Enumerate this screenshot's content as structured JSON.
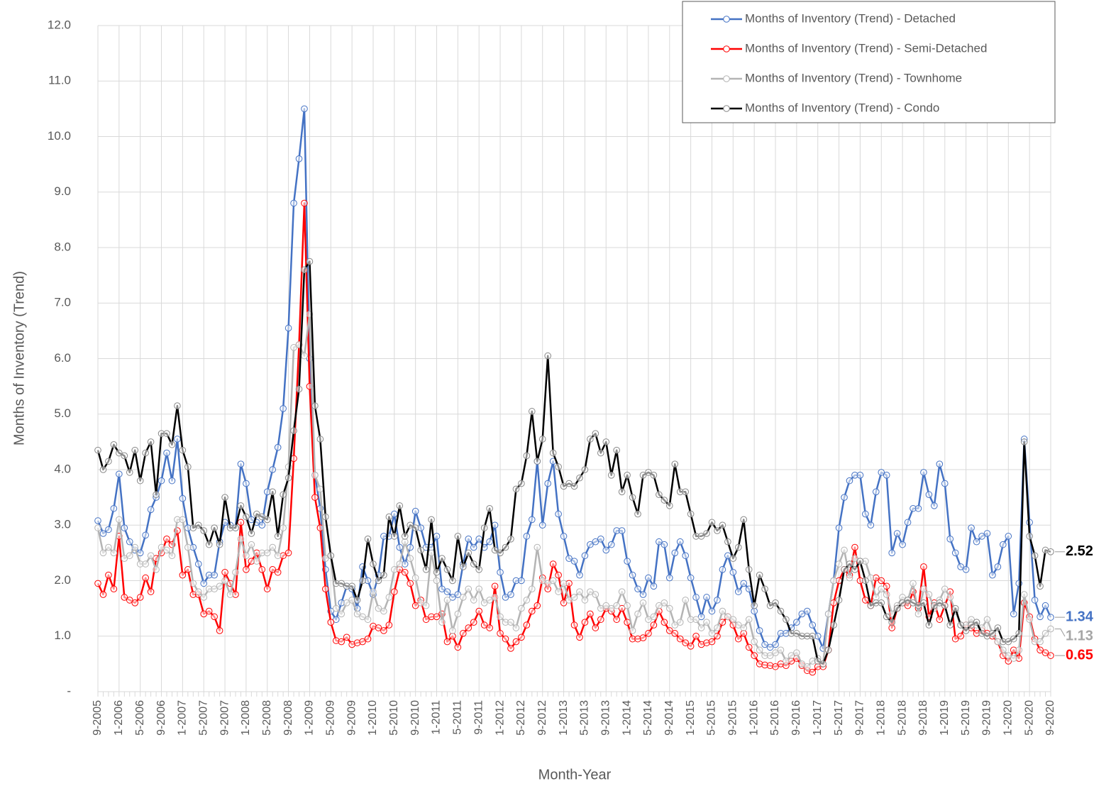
{
  "chart_data": {
    "type": "line",
    "x_label": "Month-Year",
    "y_label": "Months of Inventory (Trend)",
    "categories": [
      "9-2005",
      null,
      null,
      null,
      "1-2006",
      null,
      null,
      null,
      "5-2006",
      null,
      null,
      null,
      "9-2006",
      null,
      null,
      null,
      "1-2007",
      null,
      null,
      null,
      "5-2007",
      null,
      null,
      null,
      "9-2007",
      null,
      null,
      null,
      "1-2008",
      null,
      null,
      null,
      "5-2008",
      null,
      null,
      null,
      "9-2008",
      null,
      null,
      null,
      "1-2009",
      null,
      null,
      null,
      "5-2009",
      null,
      null,
      null,
      "9-2009",
      null,
      null,
      null,
      "1-2010",
      null,
      null,
      null,
      "5-2010",
      null,
      null,
      null,
      "9-2010",
      null,
      null,
      null,
      "1-2011",
      null,
      null,
      null,
      "5-2011",
      null,
      null,
      null,
      "9-2011",
      null,
      null,
      null,
      "1-2012",
      null,
      null,
      null,
      "5-2012",
      null,
      null,
      null,
      "9-2012",
      null,
      null,
      null,
      "1-2013",
      null,
      null,
      null,
      "5-2013",
      null,
      null,
      null,
      "9-2013",
      null,
      null,
      null,
      "1-2014",
      null,
      null,
      null,
      "5-2014",
      null,
      null,
      null,
      "9-2014",
      null,
      null,
      null,
      "1-2015",
      null,
      null,
      null,
      "5-2015",
      null,
      null,
      null,
      "9-2015",
      null,
      null,
      null,
      "1-2016",
      null,
      null,
      null,
      "5-2016",
      null,
      null,
      null,
      "9-2016",
      null,
      null,
      null,
      "1-2017",
      null,
      null,
      null,
      "5-2017",
      null,
      null,
      null,
      "9-2017",
      null,
      null,
      null,
      "1-2018",
      null,
      null,
      null,
      "5-2018",
      null,
      null,
      null,
      "9-2018",
      null,
      null,
      null,
      "1-2019",
      null,
      null,
      null,
      "5-2019",
      null,
      null,
      null,
      "9-2019",
      null,
      null,
      null,
      "1-2020",
      null,
      null,
      null,
      "5-2020",
      null,
      null,
      null,
      "9-2020"
    ],
    "series": [
      {
        "name": "Months of Inventory (Trend) - Detached",
        "color": "#4472c4",
        "values": [
          3.08,
          2.85,
          2.92,
          3.3,
          3.92,
          2.95,
          2.7,
          2.55,
          2.5,
          2.82,
          3.28,
          3.5,
          3.8,
          4.3,
          3.8,
          4.55,
          3.48,
          2.95,
          2.6,
          2.3,
          1.95,
          2.1,
          2.1,
          2.7,
          3.05,
          3.0,
          2.95,
          4.1,
          3.75,
          3.1,
          3.05,
          3.0,
          3.6,
          4.0,
          4.4,
          5.1,
          6.55,
          8.8,
          9.6,
          10.5,
          6.0,
          3.9,
          3.3,
          2.2,
          1.45,
          1.3,
          1.6,
          1.9,
          1.85,
          1.5,
          2.25,
          2.0,
          1.75,
          2.1,
          2.8,
          2.8,
          3.2,
          2.6,
          2.3,
          2.6,
          3.25,
          2.95,
          2.6,
          2.6,
          2.8,
          1.85,
          1.8,
          1.7,
          1.75,
          2.3,
          2.75,
          2.6,
          2.75,
          2.6,
          2.7,
          3.0,
          2.15,
          1.7,
          1.75,
          2.0,
          2.0,
          2.8,
          3.1,
          4.15,
          3.0,
          3.75,
          4.15,
          3.2,
          2.8,
          2.4,
          2.35,
          2.1,
          2.45,
          2.65,
          2.7,
          2.75,
          2.55,
          2.65,
          2.9,
          2.9,
          2.35,
          2.1,
          1.85,
          1.75,
          2.05,
          1.9,
          2.7,
          2.65,
          2.05,
          2.5,
          2.7,
          2.45,
          2.05,
          1.7,
          1.35,
          1.7,
          1.45,
          1.65,
          2.2,
          2.45,
          2.15,
          1.8,
          1.95,
          1.85,
          1.45,
          1.1,
          0.85,
          0.8,
          0.85,
          1.05,
          1.05,
          1.15,
          1.25,
          1.4,
          1.45,
          1.2,
          1.0,
          0.78,
          1.4,
          2.0,
          2.95,
          3.5,
          3.8,
          3.9,
          3.9,
          3.2,
          3.0,
          3.6,
          3.95,
          3.9,
          2.5,
          2.85,
          2.65,
          3.05,
          3.3,
          3.3,
          3.95,
          3.55,
          3.35,
          4.1,
          3.75,
          2.75,
          2.5,
          2.25,
          2.2,
          2.95,
          2.7,
          2.8,
          2.85,
          2.1,
          2.25,
          2.65,
          2.8,
          1.4,
          1.95,
          4.55,
          3.05,
          1.65,
          1.35,
          1.55,
          1.34
        ]
      },
      {
        "name": "Months of Inventory (Trend) - Semi-Detached",
        "color": "#ff0000",
        "values": [
          1.95,
          1.75,
          2.1,
          1.85,
          2.8,
          1.7,
          1.65,
          1.6,
          1.7,
          2.05,
          1.8,
          2.4,
          2.5,
          2.75,
          2.65,
          2.9,
          2.1,
          2.2,
          1.75,
          1.75,
          1.4,
          1.45,
          1.35,
          1.1,
          2.15,
          1.95,
          1.75,
          3.05,
          2.2,
          2.35,
          2.5,
          2.2,
          1.85,
          2.2,
          2.15,
          2.45,
          2.5,
          4.2,
          6.25,
          8.8,
          5.5,
          3.5,
          2.95,
          1.85,
          1.25,
          0.92,
          0.9,
          0.98,
          0.85,
          0.88,
          0.9,
          0.95,
          1.18,
          1.15,
          1.1,
          1.2,
          1.8,
          2.2,
          2.15,
          1.95,
          1.55,
          1.65,
          1.3,
          1.35,
          1.35,
          1.4,
          0.9,
          1.0,
          0.8,
          1.05,
          1.15,
          1.25,
          1.45,
          1.2,
          1.15,
          1.9,
          1.05,
          0.95,
          0.78,
          0.9,
          0.98,
          1.2,
          1.45,
          1.55,
          2.05,
          1.85,
          2.3,
          2.1,
          1.6,
          1.95,
          1.2,
          0.98,
          1.25,
          1.4,
          1.15,
          1.3,
          1.5,
          1.45,
          1.3,
          1.5,
          1.25,
          0.95,
          0.95,
          0.97,
          1.05,
          1.2,
          1.45,
          1.25,
          1.1,
          1.05,
          0.95,
          0.88,
          0.82,
          1.0,
          0.85,
          0.88,
          0.9,
          1.0,
          1.25,
          1.35,
          1.2,
          0.95,
          1.05,
          0.8,
          0.65,
          0.5,
          0.48,
          0.47,
          0.45,
          0.5,
          0.47,
          0.55,
          0.6,
          0.47,
          0.38,
          0.35,
          0.45,
          0.45,
          0.75,
          1.6,
          2.0,
          2.2,
          2.1,
          2.6,
          2.0,
          1.65,
          1.55,
          2.05,
          2.0,
          1.9,
          1.15,
          1.5,
          1.6,
          1.55,
          1.8,
          1.5,
          2.25,
          1.35,
          1.6,
          1.3,
          1.55,
          1.8,
          0.95,
          1.0,
          1.2,
          1.15,
          1.05,
          1.1,
          1.05,
          1.0,
          0.9,
          0.65,
          0.55,
          0.75,
          0.6,
          1.6,
          1.35,
          0.95,
          0.75,
          0.7,
          0.65
        ]
      },
      {
        "name": "Months of Inventory (Trend) - Townhome",
        "color": "#b4b4b4",
        "label_color": "#a6a6a6",
        "values": [
          2.95,
          2.5,
          2.6,
          2.5,
          3.1,
          2.4,
          2.45,
          2.6,
          2.3,
          2.3,
          2.45,
          2.2,
          2.6,
          2.55,
          2.45,
          3.1,
          3.1,
          2.6,
          1.95,
          1.8,
          1.7,
          1.85,
          1.85,
          1.9,
          2.0,
          1.75,
          2.15,
          2.75,
          2.45,
          2.65,
          2.35,
          2.5,
          2.5,
          2.6,
          2.45,
          2.95,
          4.05,
          6.2,
          6.25,
          6.05,
          6.8,
          3.9,
          3.65,
          2.4,
          2.45,
          1.5,
          1.4,
          1.6,
          1.65,
          1.4,
          1.35,
          1.3,
          1.8,
          1.5,
          1.45,
          1.7,
          2.2,
          2.3,
          2.7,
          2.4,
          2.05,
          1.6,
          1.55,
          2.5,
          2.0,
          1.25,
          1.65,
          1.1,
          1.4,
          1.7,
          1.85,
          1.65,
          1.85,
          1.6,
          1.65,
          1.7,
          1.35,
          1.25,
          1.25,
          1.15,
          1.5,
          1.65,
          1.85,
          2.6,
          2.0,
          1.95,
          2.0,
          1.8,
          1.95,
          1.65,
          1.7,
          1.8,
          1.65,
          1.8,
          1.75,
          1.5,
          1.55,
          1.5,
          1.55,
          1.8,
          1.55,
          1.1,
          1.4,
          1.6,
          1.3,
          1.35,
          1.55,
          1.6,
          1.5,
          1.2,
          1.25,
          1.65,
          1.3,
          1.3,
          1.15,
          1.25,
          1.05,
          1.15,
          1.45,
          1.35,
          1.3,
          1.2,
          1.15,
          1.3,
          0.9,
          0.75,
          0.65,
          0.65,
          0.7,
          0.75,
          0.55,
          0.65,
          0.7,
          0.5,
          0.45,
          0.55,
          0.6,
          0.5,
          1.4,
          2.0,
          2.3,
          2.55,
          2.05,
          2.4,
          2.35,
          2.35,
          2.05,
          1.7,
          1.85,
          1.75,
          1.4,
          1.55,
          1.7,
          1.65,
          1.95,
          1.4,
          1.85,
          1.75,
          1.5,
          1.65,
          1.85,
          1.7,
          1.45,
          1.2,
          1.2,
          1.3,
          1.2,
          1.15,
          1.3,
          1.05,
          0.9,
          0.75,
          0.65,
          0.6,
          0.75,
          1.75,
          1.3,
          0.9,
          0.9,
          1.05,
          1.13
        ]
      },
      {
        "name": "Months of Inventory (Trend) - Condo",
        "color": "#000000",
        "values": [
          4.35,
          4.0,
          4.15,
          4.45,
          4.3,
          4.25,
          3.95,
          4.35,
          3.8,
          4.3,
          4.5,
          3.55,
          4.65,
          4.65,
          4.45,
          5.15,
          4.35,
          4.05,
          2.95,
          3.0,
          2.9,
          2.65,
          2.95,
          2.65,
          3.5,
          2.95,
          2.95,
          3.35,
          3.15,
          2.85,
          3.2,
          3.15,
          3.1,
          3.6,
          2.8,
          3.55,
          3.85,
          4.7,
          5.45,
          7.6,
          7.75,
          5.15,
          4.55,
          3.15,
          2.45,
          1.95,
          1.95,
          1.9,
          1.9,
          1.65,
          2.0,
          2.75,
          2.3,
          2.0,
          2.1,
          3.15,
          2.8,
          3.35,
          2.8,
          3.0,
          2.95,
          2.55,
          2.2,
          3.1,
          2.15,
          2.4,
          2.2,
          2.0,
          2.8,
          2.25,
          2.5,
          2.3,
          2.2,
          2.95,
          3.3,
          2.55,
          2.5,
          2.6,
          2.75,
          3.65,
          3.75,
          4.25,
          5.05,
          4.15,
          4.55,
          6.05,
          4.3,
          4.05,
          3.7,
          3.75,
          3.7,
          3.85,
          4.0,
          4.55,
          4.65,
          4.3,
          4.5,
          3.9,
          4.35,
          3.6,
          3.9,
          3.5,
          3.2,
          3.9,
          3.95,
          3.9,
          3.55,
          3.45,
          3.35,
          4.1,
          3.6,
          3.6,
          3.2,
          2.8,
          2.8,
          2.85,
          3.05,
          2.9,
          3.0,
          2.7,
          2.4,
          2.6,
          3.1,
          2.2,
          1.55,
          2.1,
          1.85,
          1.55,
          1.6,
          1.45,
          1.3,
          1.05,
          1.05,
          1.0,
          1.0,
          1.0,
          0.55,
          0.5,
          0.75,
          1.2,
          1.65,
          2.2,
          2.3,
          2.2,
          2.35,
          2.0,
          1.55,
          1.6,
          1.6,
          1.35,
          1.25,
          1.5,
          1.6,
          1.65,
          1.6,
          1.55,
          1.6,
          1.2,
          1.55,
          1.6,
          1.55,
          1.2,
          1.5,
          1.2,
          1.1,
          1.2,
          1.25,
          1.05,
          1.0,
          1.05,
          1.15,
          0.9,
          0.9,
          0.95,
          1.05,
          4.5,
          2.8,
          2.45,
          1.9,
          2.55,
          2.52
        ]
      }
    ],
    "ylim": [
      0,
      12
    ],
    "yticks": [
      {
        "value": 0,
        "label": "-"
      },
      {
        "value": 1,
        "label": "1.0"
      },
      {
        "value": 2,
        "label": "2.0"
      },
      {
        "value": 3,
        "label": "3.0"
      },
      {
        "value": 4,
        "label": "4.0"
      },
      {
        "value": 5,
        "label": "5.0"
      },
      {
        "value": 6,
        "label": "6.0"
      },
      {
        "value": 7,
        "label": "7.0"
      },
      {
        "value": 8,
        "label": "8.0"
      },
      {
        "value": 9,
        "label": "9.0"
      },
      {
        "value": 10,
        "label": "10.0"
      },
      {
        "value": 11,
        "label": "11.0"
      },
      {
        "value": 12,
        "label": "12.0"
      }
    ],
    "grid": true,
    "legend": "top-right",
    "label_last_point": true
  }
}
